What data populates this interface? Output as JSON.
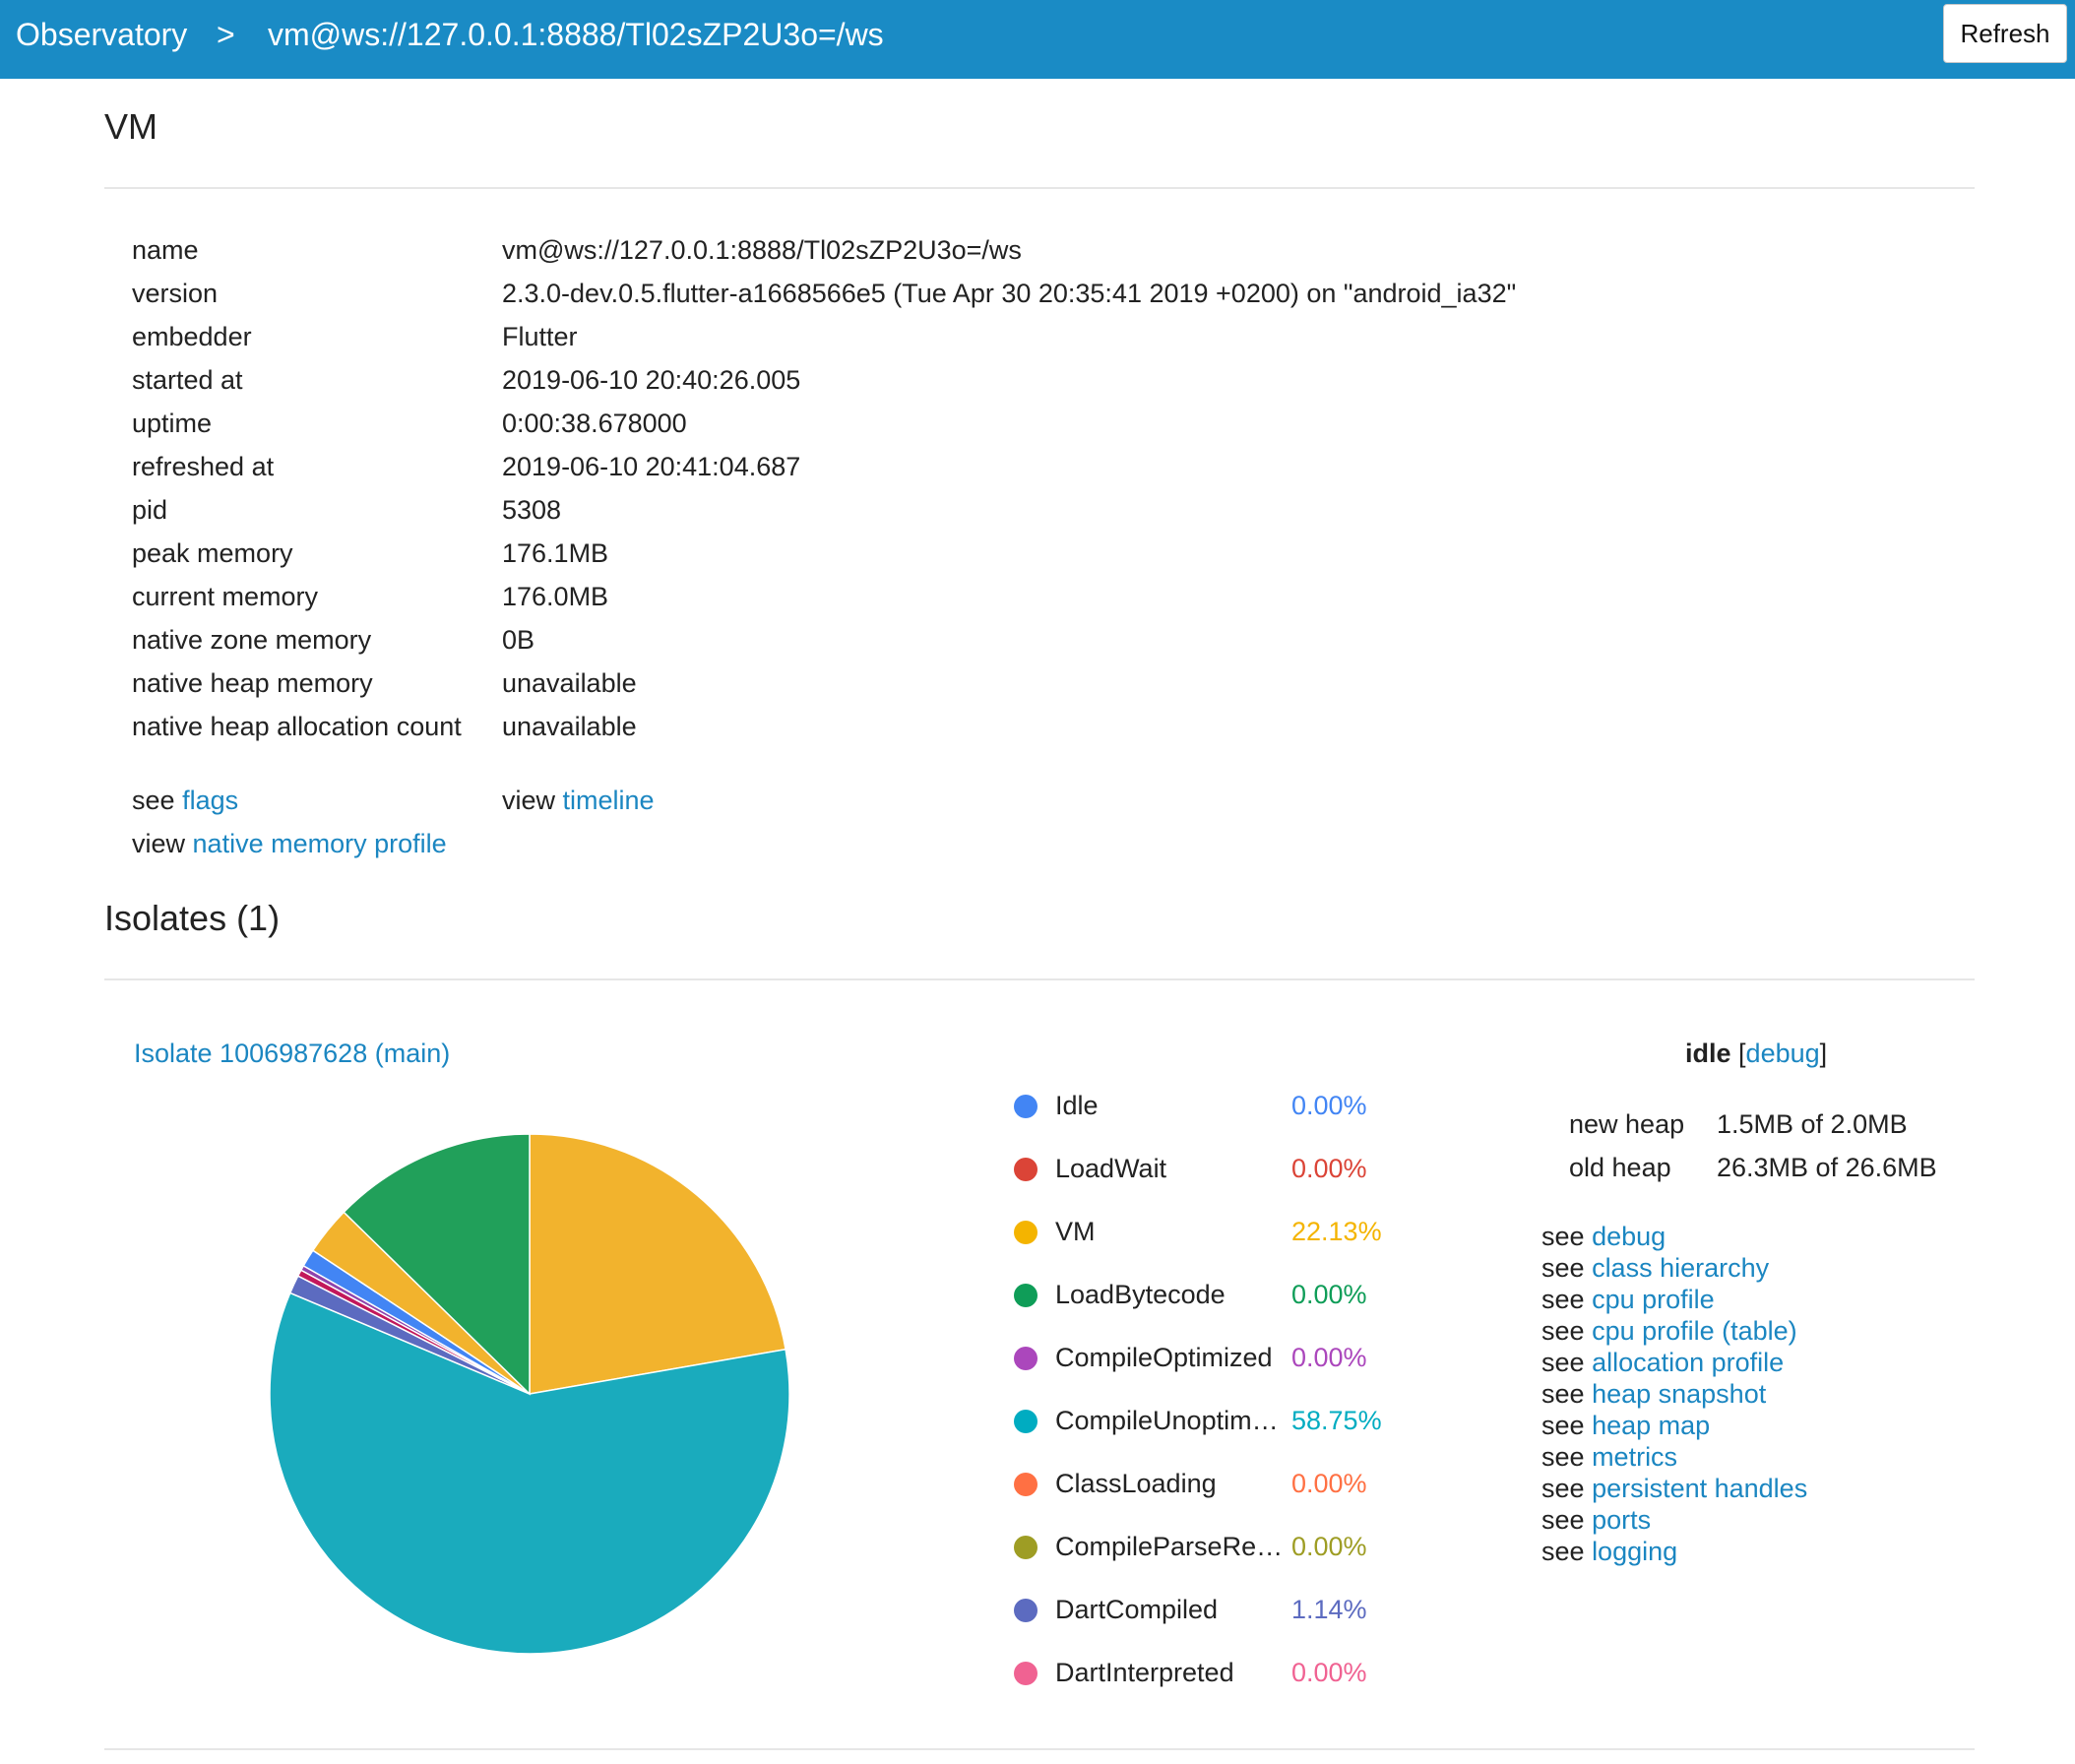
{
  "header": {
    "breadcrumb": [
      "Observatory",
      ">",
      "vm@ws://127.0.0.1:8888/Tl02sZP2U3o=/ws"
    ],
    "refresh_label": "Refresh"
  },
  "vm_section": {
    "title": "VM",
    "properties": [
      {
        "label": "name",
        "value": "vm@ws://127.0.0.1:8888/Tl02sZP2U3o=/ws"
      },
      {
        "label": "version",
        "value": "2.3.0-dev.0.5.flutter-a1668566e5 (Tue Apr 30 20:35:41 2019 +0200) on \"android_ia32\""
      },
      {
        "label": "embedder",
        "value": "Flutter"
      },
      {
        "label": "started at",
        "value": "2019-06-10 20:40:26.005"
      },
      {
        "label": "uptime",
        "value": "0:00:38.678000"
      },
      {
        "label": "refreshed at",
        "value": "2019-06-10 20:41:04.687"
      },
      {
        "label": "pid",
        "value": "5308"
      },
      {
        "label": "peak memory",
        "value": "176.1MB"
      },
      {
        "label": "current memory",
        "value": "176.0MB"
      },
      {
        "label": "native zone memory",
        "value": "0B"
      },
      {
        "label": "native heap memory",
        "value": "unavailable"
      },
      {
        "label": "native heap allocation count",
        "value": "unavailable"
      }
    ],
    "links": {
      "see_prefix": "see",
      "view_prefix": "view",
      "flags": "flags",
      "timeline": "timeline",
      "native_memory_profile": "native memory profile"
    }
  },
  "isolates_section": {
    "title": "Isolates (1)",
    "isolate_link": "Isolate 1006987628 (main)",
    "status": {
      "state": "idle",
      "open_bracket": "[",
      "debug_link": "debug",
      "close_bracket": "]"
    },
    "heap": [
      {
        "label": "new heap",
        "value": "1.5MB of 2.0MB"
      },
      {
        "label": "old heap",
        "value": "26.3MB of 26.6MB"
      }
    ],
    "see_prefix": "see",
    "see_links": [
      "debug",
      "class hierarchy",
      "cpu profile",
      "cpu profile (table)",
      "allocation profile",
      "heap snapshot",
      "heap map",
      "metrics",
      "persistent handles",
      "ports",
      "logging"
    ],
    "legend": [
      {
        "name": "Idle",
        "value": "0.00%",
        "color": "#4285f4"
      },
      {
        "name": "LoadWait",
        "value": "0.00%",
        "color": "#db4437"
      },
      {
        "name": "VM",
        "value": "22.13%",
        "color": "#f4b400"
      },
      {
        "name": "LoadBytecode",
        "value": "0.00%",
        "color": "#0f9d58"
      },
      {
        "name": "CompileOptimized",
        "value": "0.00%",
        "color": "#ab47bc"
      },
      {
        "name": "CompileUnoptim…",
        "value": "58.75%",
        "color": "#00acc1"
      },
      {
        "name": "ClassLoading",
        "value": "0.00%",
        "color": "#ff7043"
      },
      {
        "name": "CompileParseRe…",
        "value": "0.00%",
        "color": "#9e9d24"
      },
      {
        "name": "DartCompiled",
        "value": "1.14%",
        "color": "#5c6bc0"
      },
      {
        "name": "DartInterpreted",
        "value": "0.00%",
        "color": "#f06292"
      }
    ]
  },
  "chart_data": {
    "type": "pie",
    "slices": [
      {
        "value": 22.13,
        "color": "#f2b32d"
      },
      {
        "value": 58.75,
        "color": "#1aabbd"
      },
      {
        "value": 1.14,
        "color": "#5c6bc0"
      },
      {
        "value": 0.4,
        "color": "#c2185b"
      },
      {
        "value": 0.3,
        "color": "#8e44ad"
      },
      {
        "value": 1.1,
        "color": "#4285f4"
      },
      {
        "value": 3.0,
        "color": "#f2b32d"
      },
      {
        "value": 12.6,
        "color": "#21a05a"
      }
    ]
  }
}
